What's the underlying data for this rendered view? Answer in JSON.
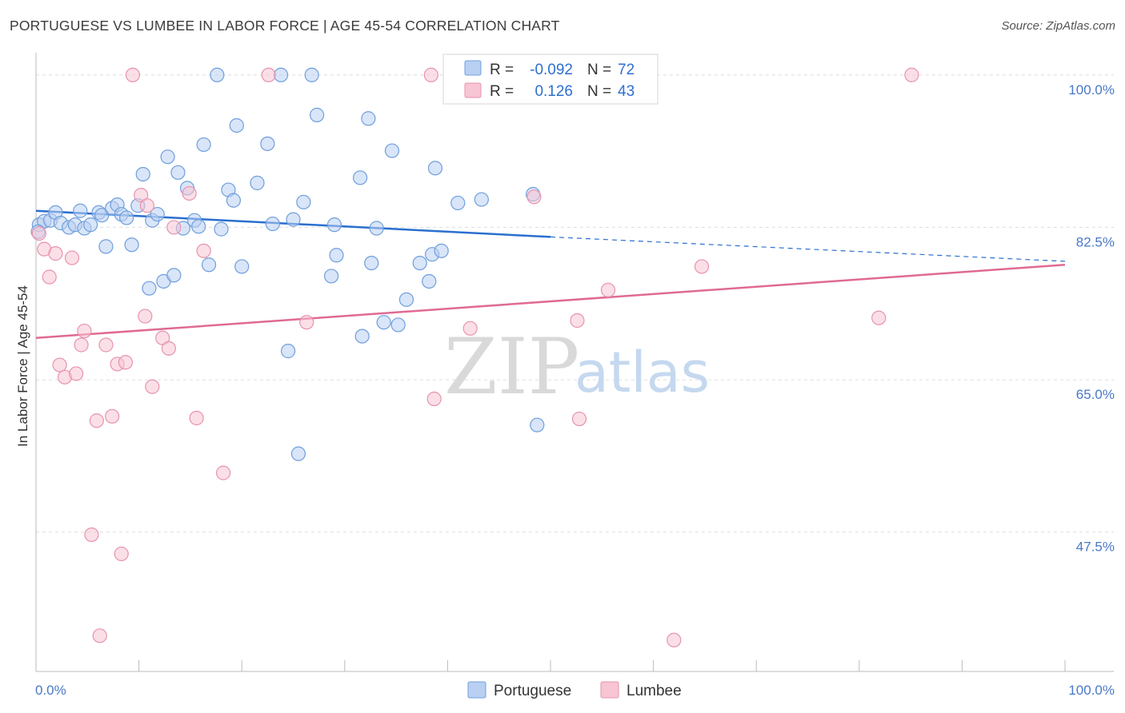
{
  "header": {
    "title": "PORTUGUESE VS LUMBEE IN LABOR FORCE | AGE 45-54 CORRELATION CHART",
    "source": "Source: ZipAtlas.com"
  },
  "colors": {
    "portuguese_fill": "#b9d0f2",
    "portuguese_stroke": "#6f9fdc",
    "portuguese_line": "#2a6fcf",
    "lumbee_fill": "#f7c5d3",
    "lumbee_stroke": "#e893ad",
    "lumbee_line": "#e06a93",
    "axis_label": "#4a78c8",
    "grid": "#dddddd"
  },
  "watermark": {
    "zip": "ZIP",
    "atlas": "atlas"
  },
  "legend": {
    "rows": [
      {
        "r_label": "R =",
        "r_value": "-0.092",
        "n_label": "N =",
        "n_value": "72",
        "series": "portuguese"
      },
      {
        "r_label": "R =",
        "r_value": "0.126",
        "n_label": "N =",
        "n_value": "43",
        "series": "lumbee"
      }
    ]
  },
  "bottom_legend": {
    "items": [
      "Portuguese",
      "Lumbee"
    ]
  },
  "chart_data": {
    "type": "scatter",
    "title": "PORTUGUESE VS LUMBEE IN LABOR FORCE | AGE 45-54 CORRELATION CHART",
    "xlabel": "",
    "ylabel": "In Labor Force | Age 45-54",
    "xlim": [
      0,
      100
    ],
    "ylim": [
      31.5,
      102
    ],
    "x_tick_labels": [
      "0.0%",
      "100.0%"
    ],
    "y_ticks": [
      47.5,
      65.0,
      82.5,
      100.0
    ],
    "y_tick_labels": [
      "47.5%",
      "65.0%",
      "82.5%",
      "100.0%"
    ],
    "grid": true,
    "legend_placement": "top-center",
    "series": [
      {
        "name": "Portuguese",
        "points": [
          [
            0.3,
            82.8
          ],
          [
            0.8,
            83.2
          ],
          [
            1.4,
            83.3
          ],
          [
            1.9,
            84.2
          ],
          [
            2.4,
            83.0
          ],
          [
            3.2,
            82.5
          ],
          [
            3.8,
            82.8
          ],
          [
            4.3,
            84.4
          ],
          [
            4.7,
            82.4
          ],
          [
            5.3,
            82.8
          ],
          [
            6.1,
            84.2
          ],
          [
            6.4,
            83.9
          ],
          [
            6.8,
            80.3
          ],
          [
            7.4,
            84.7
          ],
          [
            7.9,
            85.1
          ],
          [
            8.3,
            84.0
          ],
          [
            8.8,
            83.6
          ],
          [
            9.3,
            80.5
          ],
          [
            9.9,
            85.0
          ],
          [
            10.4,
            88.6
          ],
          [
            11.0,
            75.5
          ],
          [
            11.3,
            83.3
          ],
          [
            11.8,
            84.0
          ],
          [
            12.4,
            76.3
          ],
          [
            12.8,
            90.6
          ],
          [
            13.4,
            77.0
          ],
          [
            13.8,
            88.8
          ],
          [
            14.3,
            82.4
          ],
          [
            14.7,
            87.0
          ],
          [
            15.4,
            83.3
          ],
          [
            15.8,
            82.6
          ],
          [
            16.3,
            92.0
          ],
          [
            16.8,
            78.2
          ],
          [
            18.0,
            82.3
          ],
          [
            18.7,
            86.8
          ],
          [
            19.2,
            85.6
          ],
          [
            19.5,
            94.2
          ],
          [
            20.0,
            78.0
          ],
          [
            17.6,
            100.0
          ],
          [
            21.5,
            87.6
          ],
          [
            22.5,
            92.1
          ],
          [
            23.0,
            82.9
          ],
          [
            23.8,
            100.0
          ],
          [
            24.5,
            68.3
          ],
          [
            25.0,
            83.4
          ],
          [
            25.5,
            56.5
          ],
          [
            26.0,
            85.4
          ],
          [
            26.8,
            100.0
          ],
          [
            27.3,
            95.4
          ],
          [
            28.7,
            76.9
          ],
          [
            29.0,
            82.8
          ],
          [
            29.2,
            79.3
          ],
          [
            31.5,
            88.2
          ],
          [
            31.7,
            70.0
          ],
          [
            32.3,
            95.0
          ],
          [
            32.6,
            78.4
          ],
          [
            33.1,
            82.4
          ],
          [
            33.8,
            71.6
          ],
          [
            34.6,
            91.3
          ],
          [
            35.2,
            71.3
          ],
          [
            36.0,
            74.2
          ],
          [
            37.3,
            78.4
          ],
          [
            38.2,
            76.3
          ],
          [
            38.5,
            79.4
          ],
          [
            38.8,
            89.3
          ],
          [
            39.4,
            79.8
          ],
          [
            41.0,
            85.3
          ],
          [
            43.3,
            85.7
          ],
          [
            45.7,
            100.0
          ],
          [
            48.3,
            86.3
          ],
          [
            48.7,
            59.8
          ],
          [
            0.2,
            82.0
          ]
        ],
        "trend": {
          "x0": 0,
          "y0": 84.4,
          "x1": 50,
          "y1": 81.4,
          "dashed_to_x": 100,
          "dashed_to_y": 78.6
        }
      },
      {
        "name": "Lumbee",
        "points": [
          [
            0.3,
            81.8
          ],
          [
            0.8,
            80.0
          ],
          [
            1.3,
            76.8
          ],
          [
            1.9,
            79.5
          ],
          [
            2.3,
            66.7
          ],
          [
            2.8,
            65.3
          ],
          [
            3.5,
            79.0
          ],
          [
            3.9,
            65.7
          ],
          [
            4.4,
            69.0
          ],
          [
            4.7,
            70.6
          ],
          [
            5.4,
            47.2
          ],
          [
            5.9,
            60.3
          ],
          [
            6.2,
            35.6
          ],
          [
            6.8,
            69.0
          ],
          [
            7.4,
            60.8
          ],
          [
            7.9,
            66.8
          ],
          [
            8.3,
            45.0
          ],
          [
            8.7,
            67.0
          ],
          [
            9.4,
            100.0
          ],
          [
            10.2,
            86.2
          ],
          [
            10.6,
            72.3
          ],
          [
            10.8,
            85.0
          ],
          [
            11.3,
            64.2
          ],
          [
            12.3,
            69.8
          ],
          [
            12.9,
            68.6
          ],
          [
            13.4,
            82.5
          ],
          [
            14.9,
            86.4
          ],
          [
            15.6,
            60.6
          ],
          [
            16.3,
            79.8
          ],
          [
            18.2,
            54.3
          ],
          [
            22.6,
            100.0
          ],
          [
            26.3,
            71.6
          ],
          [
            38.4,
            100.0
          ],
          [
            38.7,
            62.8
          ],
          [
            42.2,
            70.9
          ],
          [
            48.4,
            86.0
          ],
          [
            52.6,
            71.8
          ],
          [
            52.8,
            60.5
          ],
          [
            55.6,
            75.3
          ],
          [
            62.0,
            35.1
          ],
          [
            64.7,
            78.0
          ],
          [
            81.9,
            72.1
          ],
          [
            85.1,
            100.0
          ]
        ],
        "trend": {
          "x0": 0,
          "y0": 69.8,
          "x1": 100,
          "y1": 78.2
        }
      }
    ]
  }
}
